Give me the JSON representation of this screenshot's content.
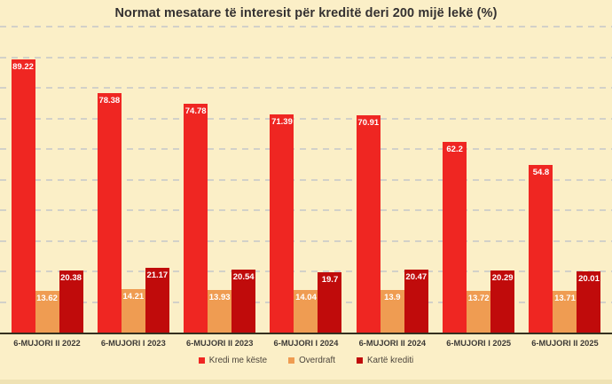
{
  "title": "Normat mesatare të interesit për kreditë deri 200 mijë lekë (%)",
  "colors": {
    "background": "#FBEFC7",
    "series_kredi_me_keste": "#EF2622",
    "series_overdraft": "#EF9C52",
    "series_karte_krediti": "#C00B0B",
    "gridline": "#D2D1C9",
    "axis_line": "#35301F",
    "value_label": "#FFFFFF",
    "bottom_strip": "#EFE2B4"
  },
  "chart_data": {
    "type": "bar",
    "title": "Normat mesatare të interesit për kreditë deri 200 mijë lekë (%)",
    "categories": [
      "6-MUJORI II 2022",
      "6-MUJORI I 2023",
      "6-MUJORI II 2023",
      "6-MUJORI I 2024",
      "6-MUJORI II 2024",
      "6-MUJORI I 2025",
      "6-MUJORI II 2025"
    ],
    "series": [
      {
        "name": "Kredi me këste",
        "key": "kredi-me-keste",
        "color": "#EF2622",
        "values": [
          89.22,
          78.38,
          74.78,
          71.39,
          70.91,
          62.2,
          54.8
        ]
      },
      {
        "name": "Overdraft",
        "key": "overdraft",
        "color": "#EF9C52",
        "values": [
          13.62,
          14.21,
          13.93,
          14.04,
          13.9,
          13.72,
          13.71
        ]
      },
      {
        "name": "Kartë krediti",
        "key": "karte-krediti",
        "color": "#C00B0B",
        "values": [
          20.38,
          21.17,
          20.54,
          19.7,
          20.47,
          20.29,
          20.01
        ]
      }
    ],
    "xlabel": "",
    "ylabel": "",
    "ylim": [
      0,
      100
    ],
    "grid": true,
    "grid_interval": 10,
    "y_axis_labels_visible": false,
    "data_labels_visible": true,
    "legend_position": "bottom"
  }
}
